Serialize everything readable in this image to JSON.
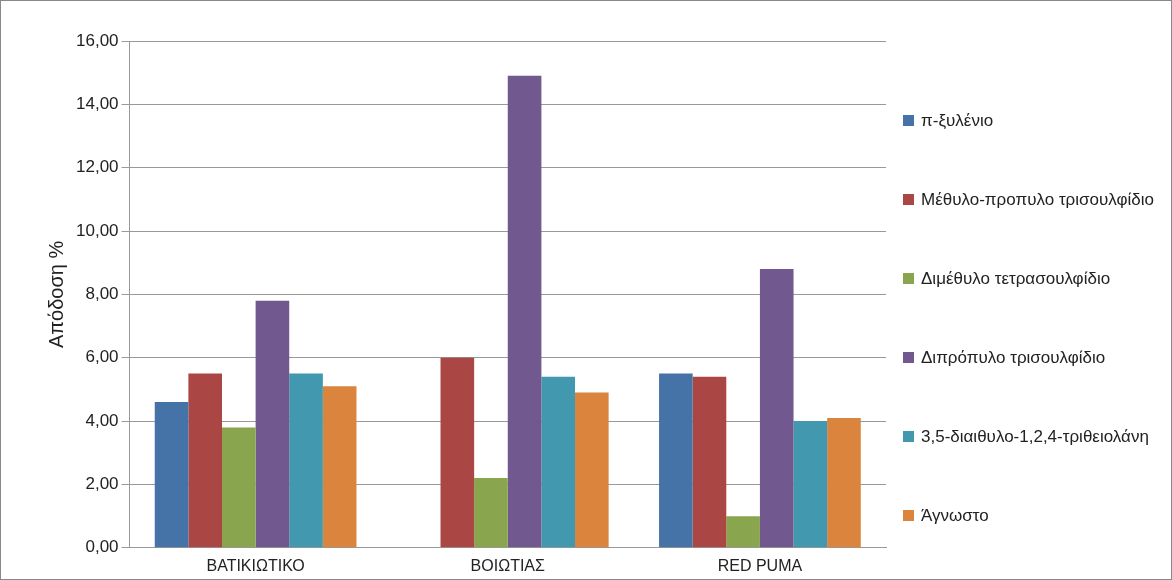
{
  "chart_data": {
    "type": "bar",
    "ylabel": "Απόδοση %",
    "categories": [
      "ΒΑΤΙΚΙΩΤΙΚΟ",
      "ΒΟΙΩΤΙΑΣ",
      "RED PUMA"
    ],
    "series": [
      {
        "name": "π-ξυλένιο",
        "color": "#4572a7",
        "values": [
          4.6,
          null,
          5.5
        ]
      },
      {
        "name": "Μέθυλο-προπυλο τρισουλφίδιο",
        "color": "#aa4643",
        "values": [
          5.5,
          6.0,
          5.4
        ]
      },
      {
        "name": "Διμέθυλο τετρασουλφίδιο",
        "color": "#89a54e",
        "values": [
          3.8,
          2.2,
          1.0
        ]
      },
      {
        "name": "Διπρόπυλο τρισουλφίδιο",
        "color": "#71588f",
        "values": [
          7.8,
          14.9,
          8.8
        ]
      },
      {
        "name": "3,5-διαιθυλο-1,2,4-τριθειολάνη",
        "color": "#4198af",
        "values": [
          5.5,
          5.4,
          4.0
        ]
      },
      {
        "name": "Άγνωστο",
        "color": "#db843d",
        "values": [
          5.1,
          4.9,
          4.1
        ]
      }
    ],
    "ylim": [
      0,
      16
    ],
    "yticks": [
      {
        "value": 0,
        "label": "0,00"
      },
      {
        "value": 2,
        "label": "2,00"
      },
      {
        "value": 4,
        "label": "4,00"
      },
      {
        "value": 6,
        "label": "6,00"
      },
      {
        "value": 8,
        "label": "8,00"
      },
      {
        "value": 10,
        "label": "10,00"
      },
      {
        "value": 12,
        "label": "12,00"
      },
      {
        "value": 14,
        "label": "14,00"
      },
      {
        "value": 16,
        "label": "16,00"
      }
    ],
    "grid": "y",
    "legend": "right"
  }
}
